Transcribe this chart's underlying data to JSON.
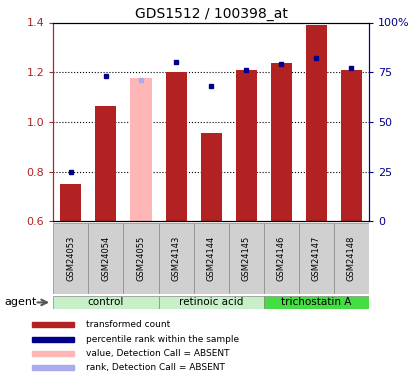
{
  "title": "GDS1512 / 100398_at",
  "samples": [
    "GSM24053",
    "GSM24054",
    "GSM24055",
    "GSM24143",
    "GSM24144",
    "GSM24145",
    "GSM24146",
    "GSM24147",
    "GSM24148"
  ],
  "bar_values": [
    0.75,
    1.065,
    1.175,
    1.2,
    0.955,
    1.21,
    1.235,
    1.39,
    1.21
  ],
  "bar_absent": [
    false,
    false,
    true,
    false,
    false,
    false,
    false,
    false,
    false
  ],
  "rank_values_pct": [
    25,
    73,
    71,
    80,
    68,
    76,
    79,
    82,
    77
  ],
  "rank_absent": [
    false,
    false,
    true,
    false,
    false,
    false,
    false,
    false,
    false
  ],
  "bar_color_normal": "#b22222",
  "bar_color_absent": "#ffb6b6",
  "rank_color_normal": "#00008b",
  "rank_color_absent": "#aaaaee",
  "ylim_left": [
    0.6,
    1.4
  ],
  "ylim_right": [
    0,
    100
  ],
  "yticks_left": [
    0.6,
    0.8,
    1.0,
    1.2,
    1.4
  ],
  "yticks_right": [
    0,
    25,
    50,
    75,
    100
  ],
  "ytick_labels_right": [
    "0",
    "25",
    "50",
    "75",
    "100%"
  ],
  "grid_lines": [
    0.8,
    1.0,
    1.2
  ],
  "groups": [
    {
      "label": "control",
      "indices": [
        0,
        1,
        2
      ],
      "color": "#c8f0c8"
    },
    {
      "label": "retinoic acid",
      "indices": [
        3,
        4,
        5
      ],
      "color": "#c8f0c8"
    },
    {
      "label": "trichostatin A",
      "indices": [
        6,
        7,
        8
      ],
      "color": "#44dd44"
    }
  ],
  "agent_label": "agent",
  "sample_box_color": "#d0d0d0",
  "legend_items": [
    {
      "label": "transformed count",
      "color": "#b22222"
    },
    {
      "label": "percentile rank within the sample",
      "color": "#00008b"
    },
    {
      "label": "value, Detection Call = ABSENT",
      "color": "#ffb6b6"
    },
    {
      "label": "rank, Detection Call = ABSENT",
      "color": "#aaaaee"
    }
  ],
  "bar_width": 0.6
}
